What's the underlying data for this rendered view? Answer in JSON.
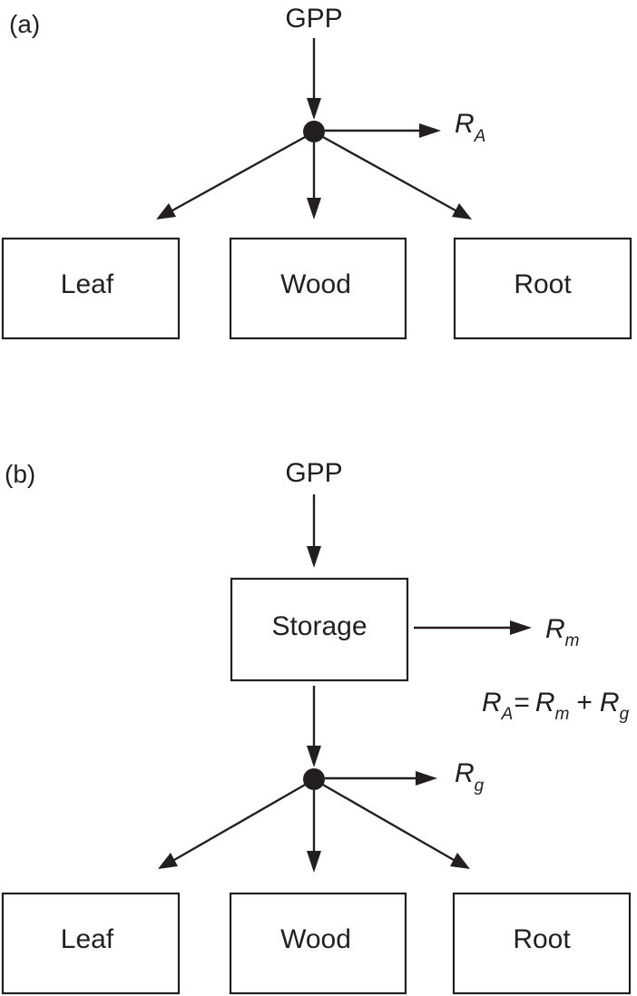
{
  "panel_a": {
    "label": "(a)",
    "input": "GPP",
    "respiration": {
      "symbol": "R",
      "subscript": "A"
    },
    "pools": [
      "Leaf",
      "Wood",
      "Root"
    ]
  },
  "panel_b": {
    "label": "(b)",
    "input": "GPP",
    "storage": "Storage",
    "maintenance": {
      "symbol": "R",
      "subscript": "m"
    },
    "growth": {
      "symbol": "R",
      "subscript": "g"
    },
    "equation": {
      "lhs_symbol": "R",
      "lhs_sub": "A",
      "equals": "=",
      "t1_symbol": "R",
      "t1_sub": "m",
      "plus": "+",
      "t2_symbol": "R",
      "t2_sub": "g"
    },
    "pools": [
      "Leaf",
      "Wood",
      "Root"
    ]
  },
  "colors": {
    "ink": "#231f20",
    "background": "#ffffff"
  }
}
